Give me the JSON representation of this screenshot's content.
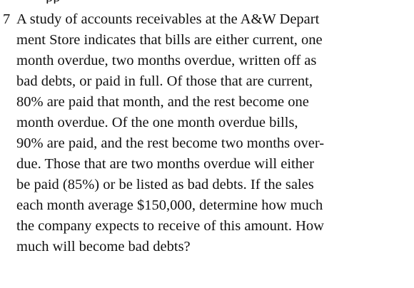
{
  "problem": {
    "top_fragment": "pp",
    "number": "7",
    "lines": [
      "A study of accounts receivables at the A&W Depart",
      "ment Store indicates that bills are either current, one",
      "month overdue, two months overdue, written off as",
      "bad debts, or paid in full. Of those that are current,",
      "80% are paid that month, and the rest become one",
      "month overdue. Of the one month overdue bills,",
      "90% are paid, and the rest become two months over-",
      "due. Those that are two months overdue will either",
      "be paid (85%) or be listed as bad debts. If the sales",
      "each month average $150,000, determine how much",
      "the company expects to receive of this amount. How",
      "much will become bad debts?"
    ]
  }
}
